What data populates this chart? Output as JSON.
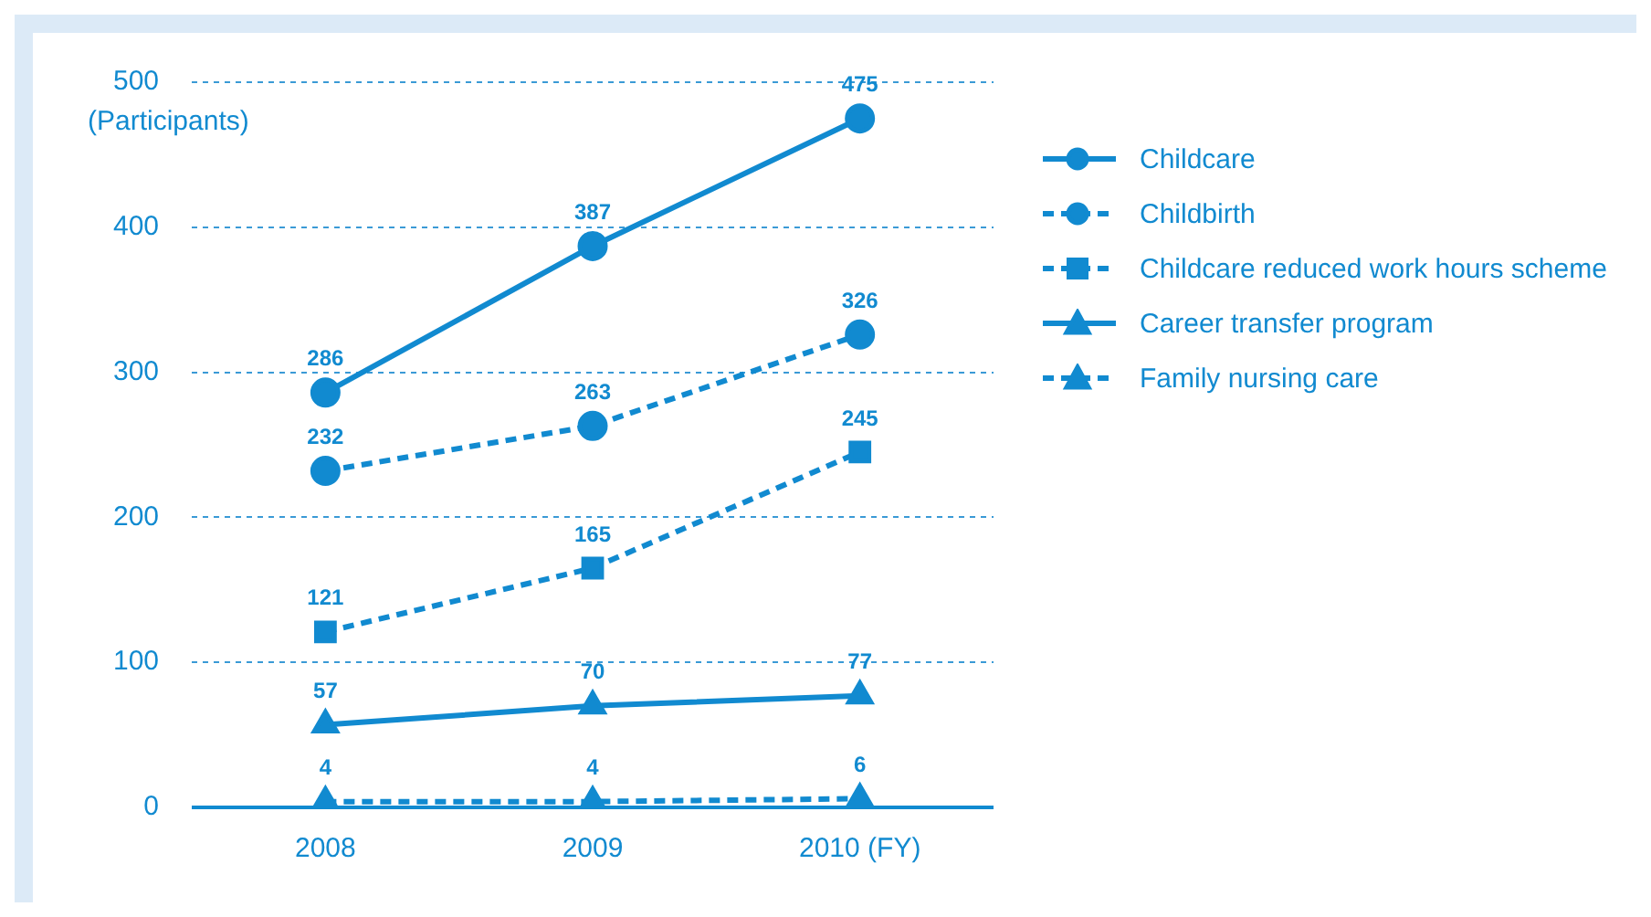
{
  "chart_data": {
    "type": "line",
    "ylabel": "(Participants)",
    "categories": [
      "2008",
      "2009",
      "2010 (FY)"
    ],
    "series": [
      {
        "name": "Childcare",
        "color": "#118ad0",
        "values": [
          286,
          387,
          475
        ],
        "marker": "circle",
        "line_style": "solid"
      },
      {
        "name": "Childbirth",
        "color": "#118ad0",
        "values": [
          232,
          263,
          326
        ],
        "marker": "circle",
        "line_style": "dashed"
      },
      {
        "name": "Childcare reduced work hours scheme",
        "color": "#118ad0",
        "values": [
          121,
          165,
          245
        ],
        "marker": "square",
        "line_style": "dashed"
      },
      {
        "name": "Career transfer program",
        "color": "#118ad0",
        "values": [
          57,
          70,
          77
        ],
        "marker": "triangle",
        "line_style": "solid"
      },
      {
        "name": "Family nursing care",
        "color": "#118ad0",
        "values": [
          4,
          4,
          6
        ],
        "marker": "triangle",
        "line_style": "dashed"
      }
    ],
    "ylim": [
      0,
      500
    ],
    "yticks": [
      0,
      100,
      200,
      300,
      400,
      500
    ],
    "grid": "y",
    "legend": "right",
    "data_labels": true
  }
}
